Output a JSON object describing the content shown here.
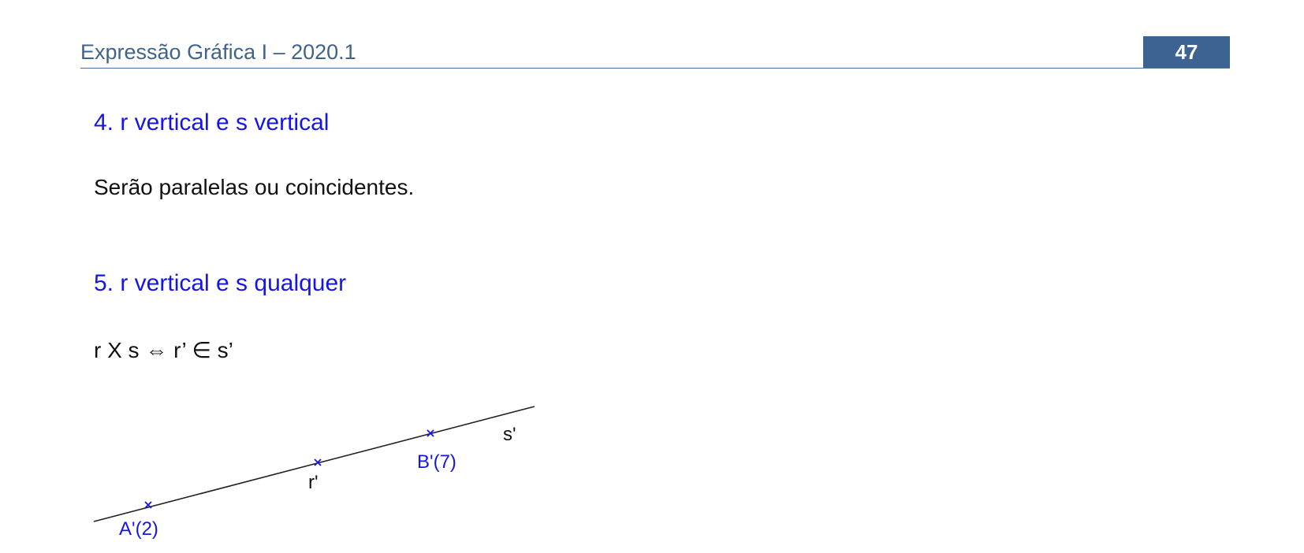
{
  "header": {
    "title": "Expressão Gráfica I – 2020.1",
    "page_number": "47"
  },
  "section4": {
    "heading": "4. r vertical e s vertical",
    "text": "Serão paralelas ou coincidentes."
  },
  "section5": {
    "heading": "5. r vertical e s qualquer",
    "formula": "r X s ⇔ r’ ∈ s’"
  },
  "figure": {
    "line_label": "s'",
    "point_r_label": "r'",
    "point_a_label": "A'(2)",
    "point_b_label": "B'(7)",
    "colors": {
      "line": "#222222",
      "points": "#1515e6",
      "label_black": "#111111"
    }
  }
}
